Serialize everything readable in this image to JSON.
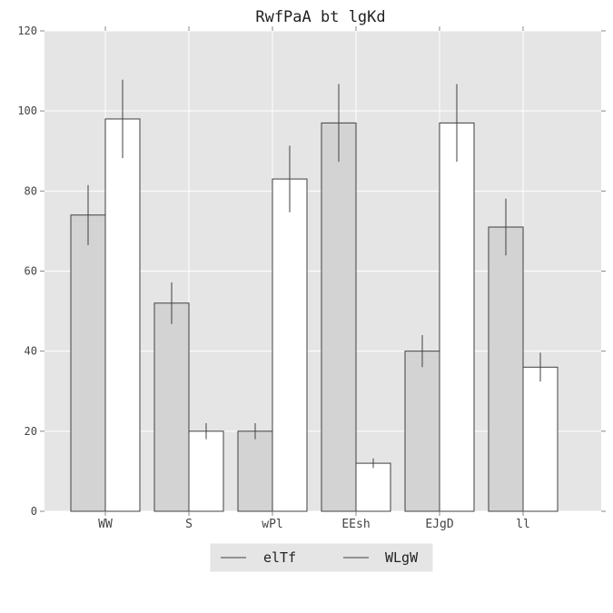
{
  "chart_data": {
    "type": "bar",
    "title": "RwfPaA bt lgKd",
    "xlabel": "",
    "ylabel": "",
    "categories": [
      "WW",
      "S",
      "wPl",
      "EEsh",
      "EJgD",
      "ll"
    ],
    "ylim": [
      0,
      120
    ],
    "yticks": [
      0,
      20,
      40,
      60,
      80,
      100,
      120
    ],
    "grid": true,
    "legend_position": "bottom-center",
    "series": [
      {
        "name": "elTf",
        "color": "#d3d3d3",
        "values": [
          74,
          52,
          20,
          97,
          40,
          71
        ],
        "errors": [
          7.5,
          5.2,
          2.0,
          9.7,
          4.0,
          7.1
        ]
      },
      {
        "name": "WLgW",
        "color": "#ffffff",
        "values": [
          98,
          20,
          83,
          12,
          97,
          36
        ],
        "errors": [
          9.8,
          2.0,
          8.3,
          1.2,
          9.7,
          3.6
        ]
      }
    ],
    "colors": {
      "plot_background": "#e5e5e5",
      "grid": "#ffffff",
      "bar_edge": "#404040",
      "error_bar": "#404040",
      "legend_background": "#e5e5e5"
    }
  }
}
